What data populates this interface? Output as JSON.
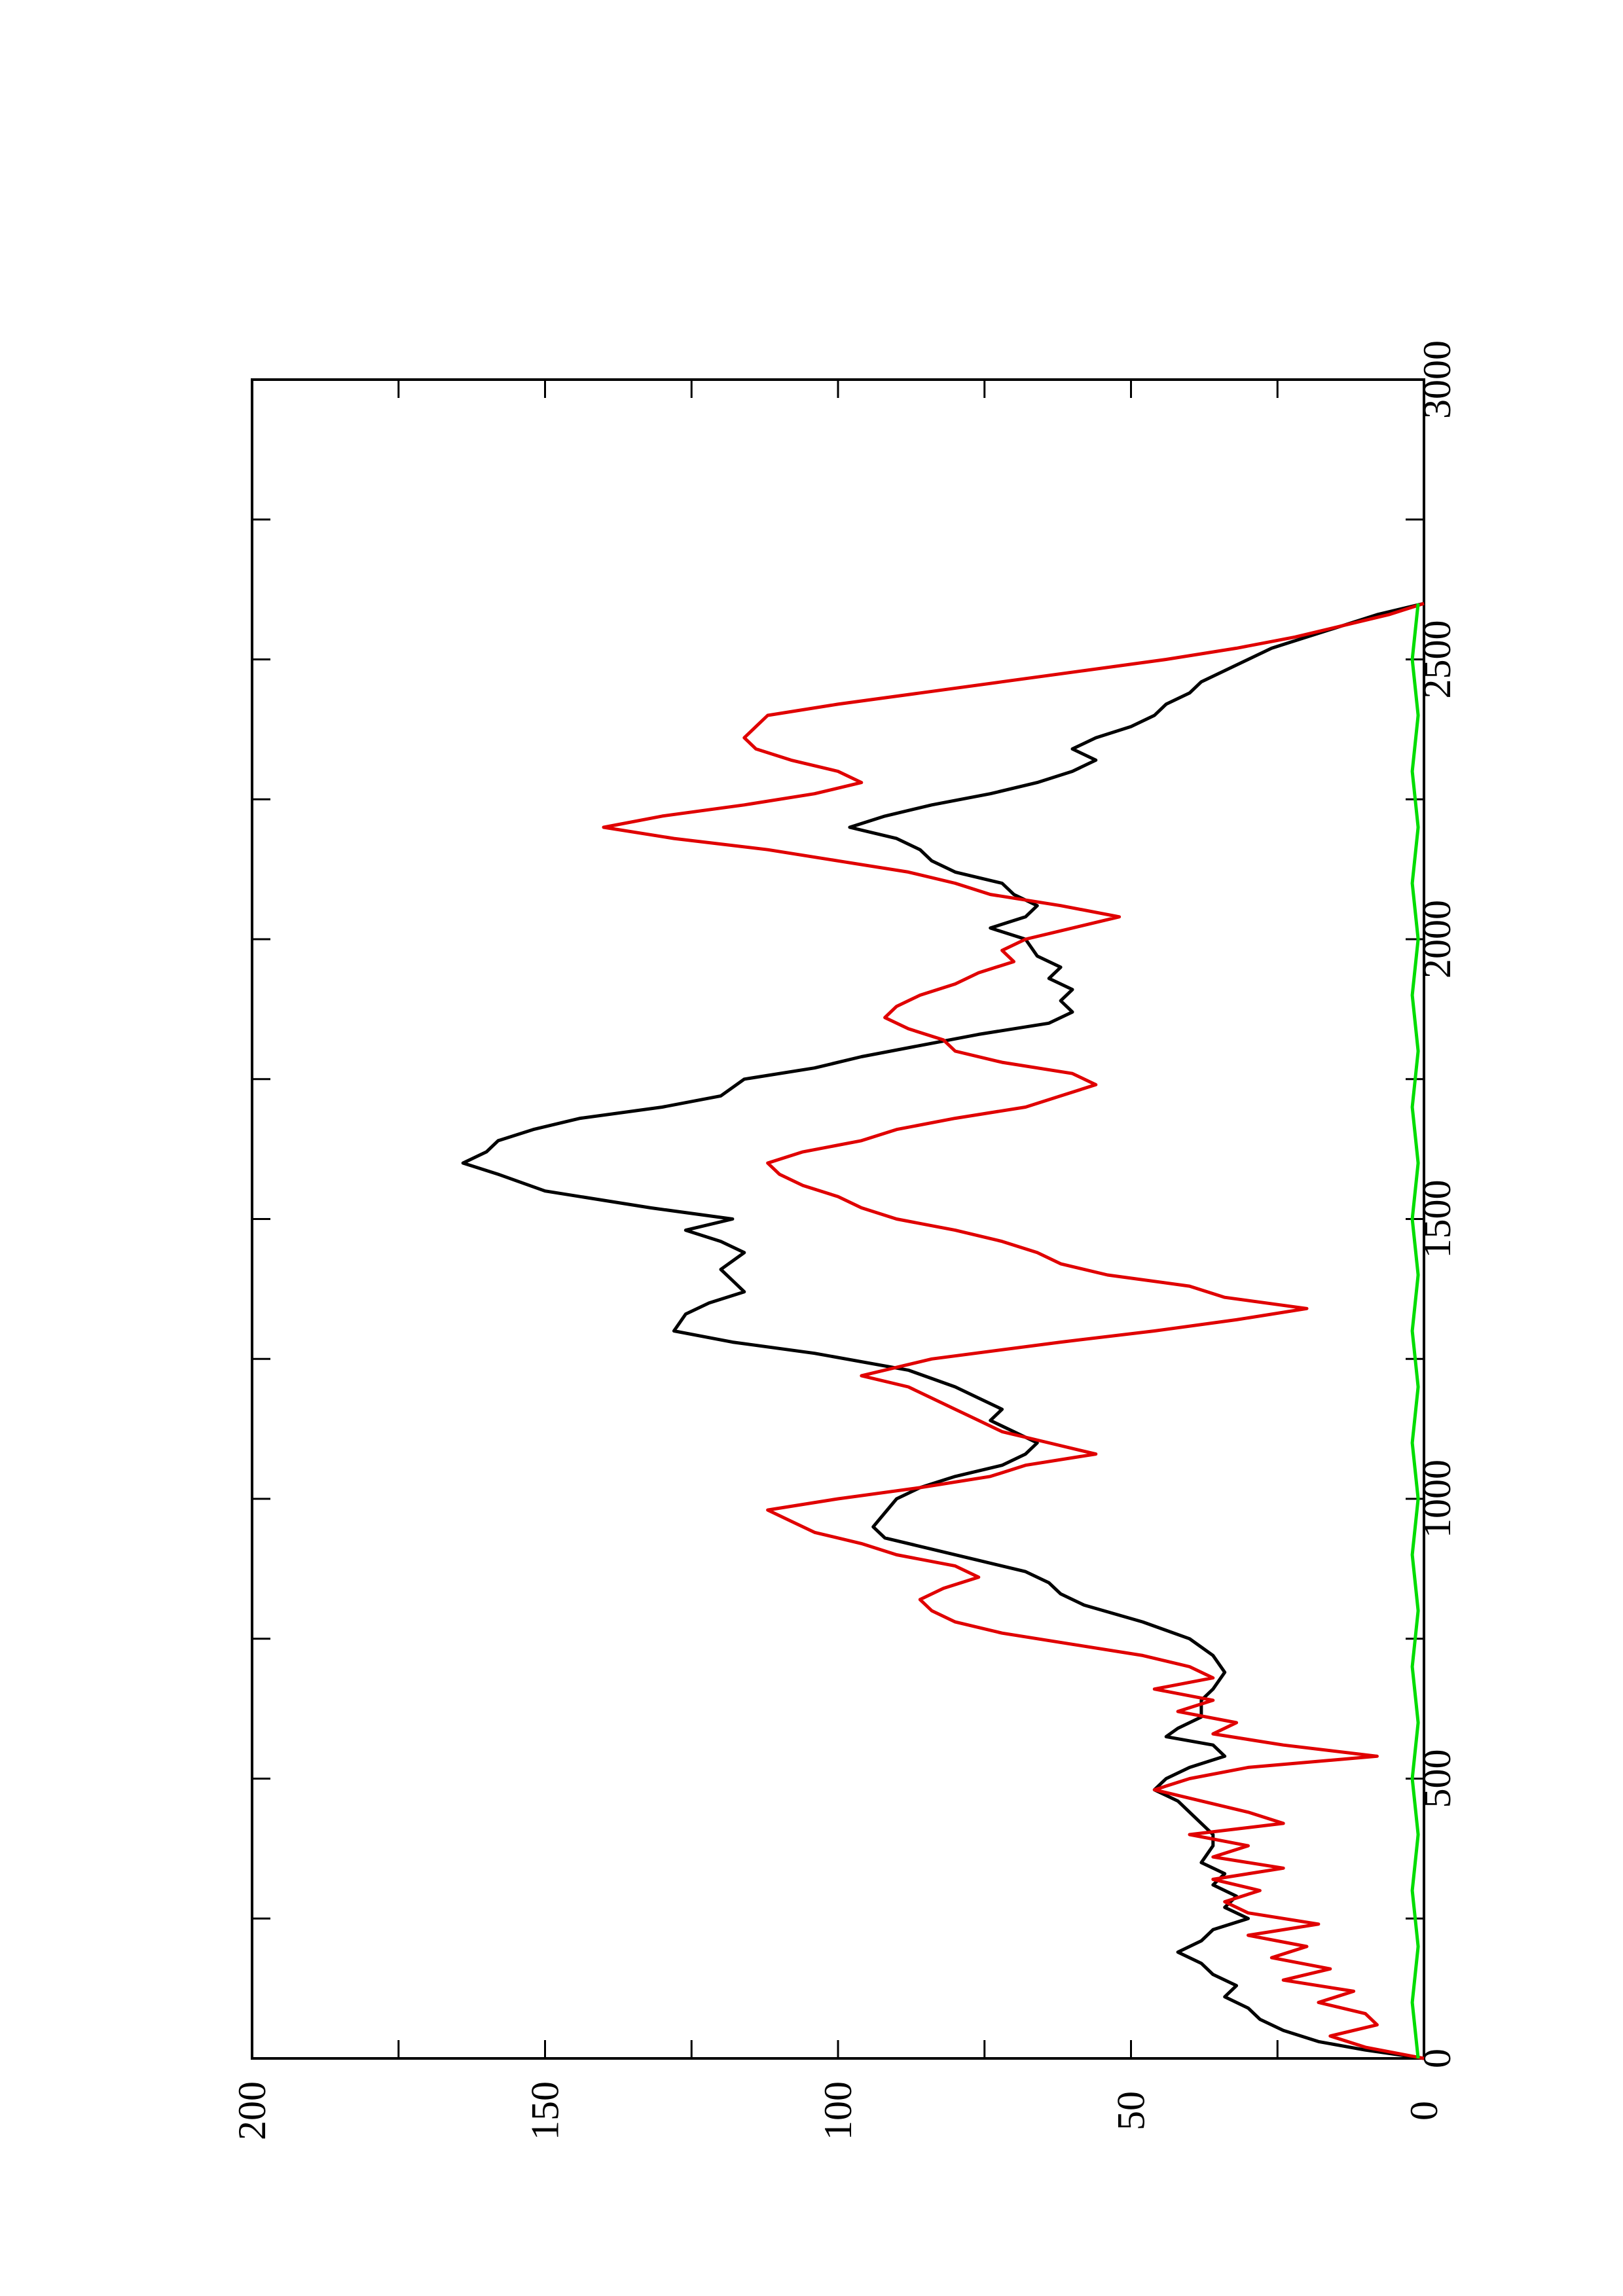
{
  "chart_data": {
    "type": "line",
    "orientation": "rotated-90-ccw",
    "title": "",
    "xlabel": "",
    "ylabel": "",
    "xlim": [
      0,
      3000
    ],
    "ylim": [
      0,
      200
    ],
    "x_ticks": [
      "0",
      "500",
      "1000",
      "1500",
      "2000",
      "2500",
      "3000"
    ],
    "y_ticks": [
      "0",
      "50",
      "100",
      "150",
      "200"
    ],
    "grid": false,
    "legend": "none",
    "series": [
      {
        "color": "#000000",
        "points": [
          [
            0,
            0
          ],
          [
            15,
            10
          ],
          [
            30,
            18
          ],
          [
            50,
            24
          ],
          [
            70,
            28
          ],
          [
            90,
            30
          ],
          [
            110,
            34
          ],
          [
            130,
            32
          ],
          [
            150,
            36
          ],
          [
            170,
            38
          ],
          [
            190,
            42
          ],
          [
            210,
            38
          ],
          [
            230,
            36
          ],
          [
            250,
            30
          ],
          [
            270,
            34
          ],
          [
            290,
            32
          ],
          [
            310,
            36
          ],
          [
            330,
            34
          ],
          [
            350,
            38
          ],
          [
            380,
            36
          ],
          [
            400,
            36
          ],
          [
            420,
            38
          ],
          [
            440,
            40
          ],
          [
            460,
            42
          ],
          [
            480,
            46
          ],
          [
            500,
            44
          ],
          [
            520,
            40
          ],
          [
            540,
            34
          ],
          [
            560,
            36
          ],
          [
            575,
            44
          ],
          [
            590,
            42
          ],
          [
            610,
            38
          ],
          [
            640,
            38
          ],
          [
            660,
            36
          ],
          [
            690,
            34
          ],
          [
            720,
            36
          ],
          [
            750,
            40
          ],
          [
            780,
            48
          ],
          [
            810,
            58
          ],
          [
            830,
            62
          ],
          [
            850,
            64
          ],
          [
            870,
            68
          ],
          [
            890,
            76
          ],
          [
            910,
            84
          ],
          [
            930,
            92
          ],
          [
            950,
            94
          ],
          [
            975,
            92
          ],
          [
            1000,
            90
          ],
          [
            1020,
            86
          ],
          [
            1040,
            80
          ],
          [
            1060,
            72
          ],
          [
            1080,
            68
          ],
          [
            1100,
            66
          ],
          [
            1120,
            70
          ],
          [
            1140,
            74
          ],
          [
            1160,
            72
          ],
          [
            1180,
            76
          ],
          [
            1200,
            80
          ],
          [
            1230,
            88
          ],
          [
            1260,
            104
          ],
          [
            1280,
            118
          ],
          [
            1300,
            128
          ],
          [
            1330,
            126
          ],
          [
            1350,
            122
          ],
          [
            1370,
            116
          ],
          [
            1390,
            118
          ],
          [
            1410,
            120
          ],
          [
            1440,
            116
          ],
          [
            1460,
            120
          ],
          [
            1480,
            126
          ],
          [
            1500,
            118
          ],
          [
            1520,
            132
          ],
          [
            1550,
            150
          ],
          [
            1580,
            158
          ],
          [
            1600,
            164
          ],
          [
            1620,
            160
          ],
          [
            1640,
            158
          ],
          [
            1660,
            152
          ],
          [
            1680,
            144
          ],
          [
            1700,
            130
          ],
          [
            1720,
            120
          ],
          [
            1750,
            116
          ],
          [
            1770,
            104
          ],
          [
            1790,
            96
          ],
          [
            1810,
            86
          ],
          [
            1830,
            76
          ],
          [
            1850,
            64
          ],
          [
            1870,
            60
          ],
          [
            1890,
            62
          ],
          [
            1910,
            60
          ],
          [
            1930,
            64
          ],
          [
            1950,
            62
          ],
          [
            1970,
            66
          ],
          [
            2000,
            68
          ],
          [
            2020,
            74
          ],
          [
            2040,
            68
          ],
          [
            2060,
            66
          ],
          [
            2080,
            70
          ],
          [
            2100,
            72
          ],
          [
            2120,
            80
          ],
          [
            2140,
            84
          ],
          [
            2160,
            86
          ],
          [
            2180,
            90
          ],
          [
            2200,
            98
          ],
          [
            2220,
            92
          ],
          [
            2240,
            84
          ],
          [
            2260,
            74
          ],
          [
            2280,
            66
          ],
          [
            2300,
            60
          ],
          [
            2320,
            56
          ],
          [
            2340,
            60
          ],
          [
            2360,
            56
          ],
          [
            2380,
            50
          ],
          [
            2400,
            46
          ],
          [
            2420,
            44
          ],
          [
            2440,
            40
          ],
          [
            2460,
            38
          ],
          [
            2480,
            34
          ],
          [
            2500,
            30
          ],
          [
            2520,
            26
          ],
          [
            2540,
            20
          ],
          [
            2560,
            14
          ],
          [
            2580,
            8
          ],
          [
            2600,
            0
          ]
        ]
      },
      {
        "color": "#e00000",
        "points": [
          [
            0,
            0
          ],
          [
            20,
            10
          ],
          [
            40,
            16
          ],
          [
            60,
            8
          ],
          [
            80,
            10
          ],
          [
            100,
            18
          ],
          [
            120,
            12
          ],
          [
            140,
            24
          ],
          [
            160,
            16
          ],
          [
            180,
            26
          ],
          [
            200,
            20
          ],
          [
            220,
            30
          ],
          [
            240,
            18
          ],
          [
            260,
            30
          ],
          [
            280,
            34
          ],
          [
            300,
            28
          ],
          [
            320,
            36
          ],
          [
            340,
            24
          ],
          [
            360,
            36
          ],
          [
            380,
            30
          ],
          [
            400,
            40
          ],
          [
            420,
            24
          ],
          [
            440,
            30
          ],
          [
            460,
            38
          ],
          [
            480,
            46
          ],
          [
            500,
            40
          ],
          [
            520,
            30
          ],
          [
            540,
            8
          ],
          [
            560,
            24
          ],
          [
            580,
            36
          ],
          [
            600,
            32
          ],
          [
            620,
            42
          ],
          [
            640,
            36
          ],
          [
            660,
            46
          ],
          [
            680,
            36
          ],
          [
            700,
            40
          ],
          [
            720,
            48
          ],
          [
            740,
            60
          ],
          [
            760,
            72
          ],
          [
            780,
            80
          ],
          [
            800,
            84
          ],
          [
            820,
            86
          ],
          [
            840,
            82
          ],
          [
            860,
            76
          ],
          [
            880,
            80
          ],
          [
            900,
            90
          ],
          [
            920,
            96
          ],
          [
            940,
            104
          ],
          [
            960,
            108
          ],
          [
            980,
            112
          ],
          [
            1000,
            100
          ],
          [
            1020,
            86
          ],
          [
            1040,
            74
          ],
          [
            1060,
            68
          ],
          [
            1080,
            56
          ],
          [
            1100,
            64
          ],
          [
            1120,
            72
          ],
          [
            1140,
            76
          ],
          [
            1160,
            80
          ],
          [
            1180,
            84
          ],
          [
            1200,
            88
          ],
          [
            1220,
            96
          ],
          [
            1250,
            84
          ],
          [
            1280,
            62
          ],
          [
            1300,
            46
          ],
          [
            1320,
            32
          ],
          [
            1340,
            20
          ],
          [
            1360,
            34
          ],
          [
            1380,
            40
          ],
          [
            1400,
            54
          ],
          [
            1420,
            62
          ],
          [
            1440,
            66
          ],
          [
            1460,
            72
          ],
          [
            1480,
            80
          ],
          [
            1500,
            90
          ],
          [
            1520,
            96
          ],
          [
            1540,
            100
          ],
          [
            1560,
            106
          ],
          [
            1580,
            110
          ],
          [
            1600,
            112
          ],
          [
            1620,
            106
          ],
          [
            1640,
            96
          ],
          [
            1660,
            90
          ],
          [
            1680,
            80
          ],
          [
            1700,
            68
          ],
          [
            1720,
            62
          ],
          [
            1740,
            56
          ],
          [
            1760,
            60
          ],
          [
            1780,
            72
          ],
          [
            1800,
            80
          ],
          [
            1820,
            82
          ],
          [
            1840,
            88
          ],
          [
            1860,
            92
          ],
          [
            1880,
            90
          ],
          [
            1900,
            86
          ],
          [
            1920,
            80
          ],
          [
            1940,
            76
          ],
          [
            1960,
            70
          ],
          [
            1980,
            72
          ],
          [
            2000,
            68
          ],
          [
            2020,
            60
          ],
          [
            2040,
            52
          ],
          [
            2060,
            62
          ],
          [
            2080,
            74
          ],
          [
            2100,
            80
          ],
          [
            2120,
            88
          ],
          [
            2140,
            100
          ],
          [
            2160,
            112
          ],
          [
            2180,
            128
          ],
          [
            2200,
            140
          ],
          [
            2220,
            130
          ],
          [
            2240,
            116
          ],
          [
            2260,
            104
          ],
          [
            2280,
            96
          ],
          [
            2300,
            100
          ],
          [
            2320,
            108
          ],
          [
            2340,
            114
          ],
          [
            2360,
            116
          ],
          [
            2380,
            114
          ],
          [
            2400,
            112
          ],
          [
            2420,
            100
          ],
          [
            2440,
            86
          ],
          [
            2460,
            72
          ],
          [
            2480,
            58
          ],
          [
            2500,
            44
          ],
          [
            2520,
            32
          ],
          [
            2540,
            22
          ],
          [
            2560,
            14
          ],
          [
            2580,
            6
          ],
          [
            2600,
            0
          ]
        ]
      },
      {
        "color": "#00dd00",
        "points": [
          [
            0,
            1
          ],
          [
            100,
            2
          ],
          [
            200,
            1
          ],
          [
            300,
            2
          ],
          [
            400,
            1
          ],
          [
            500,
            2
          ],
          [
            600,
            1
          ],
          [
            700,
            2
          ],
          [
            800,
            1
          ],
          [
            900,
            2
          ],
          [
            1000,
            1
          ],
          [
            1100,
            2
          ],
          [
            1200,
            1
          ],
          [
            1300,
            2
          ],
          [
            1400,
            1
          ],
          [
            1500,
            2
          ],
          [
            1600,
            1
          ],
          [
            1700,
            2
          ],
          [
            1800,
            1
          ],
          [
            1900,
            2
          ],
          [
            2000,
            1
          ],
          [
            2100,
            2
          ],
          [
            2200,
            1
          ],
          [
            2300,
            2
          ],
          [
            2400,
            1
          ],
          [
            2500,
            2
          ],
          [
            2600,
            1
          ]
        ]
      }
    ]
  }
}
